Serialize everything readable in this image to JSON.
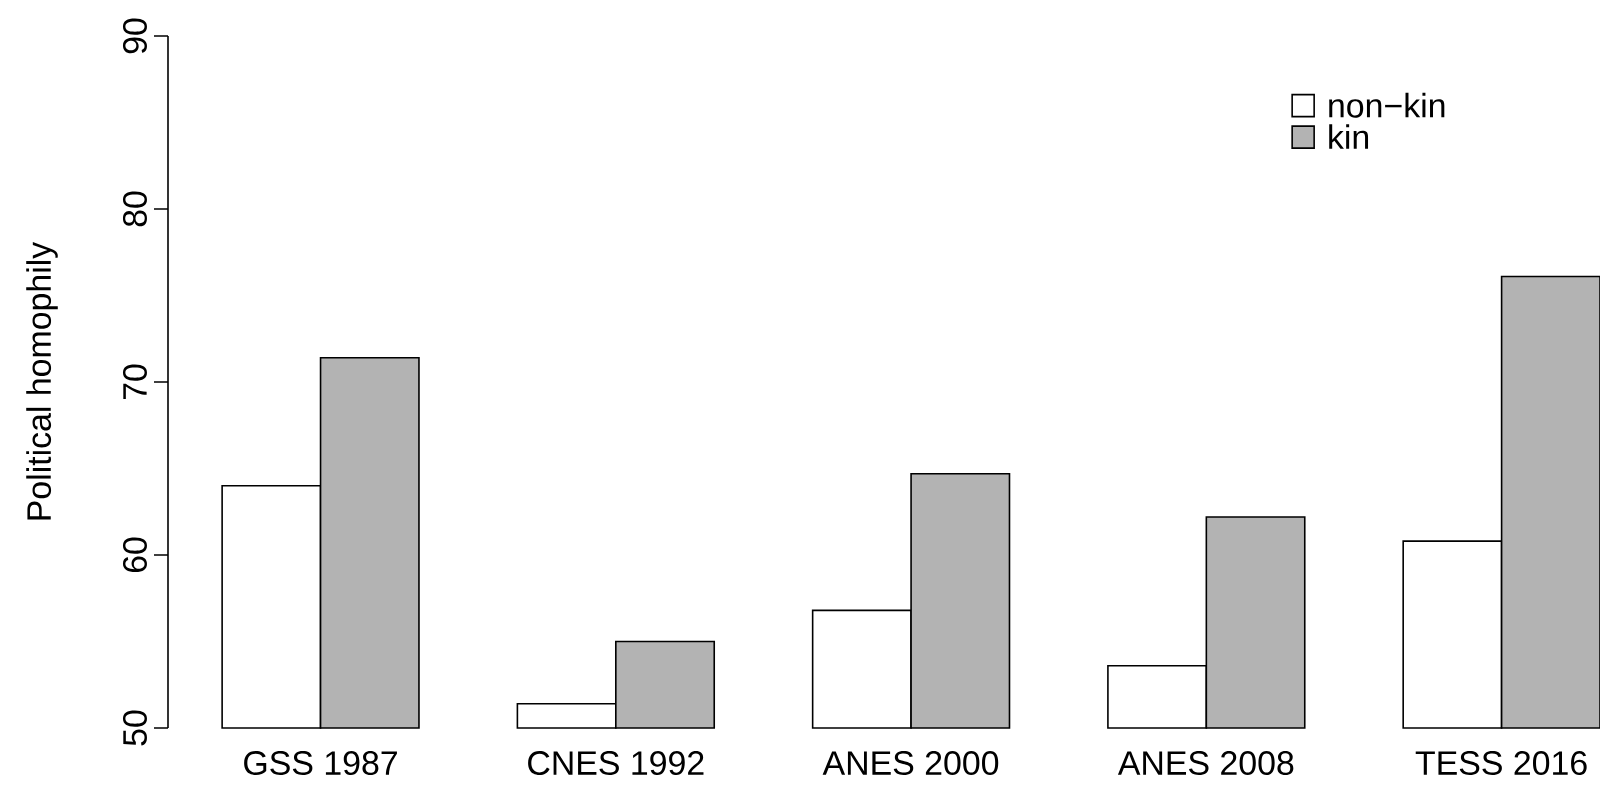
{
  "chart_data": {
    "type": "bar",
    "ylabel": "Political homophily",
    "categories": [
      "GSS 1987",
      "CNES 1992",
      "ANES 2000",
      "ANES 2008",
      "TESS 2016"
    ],
    "series": [
      {
        "name": "non−kin",
        "color": "#ffffff",
        "values": [
          64.0,
          51.4,
          56.8,
          53.6,
          60.8
        ]
      },
      {
        "name": "kin",
        "color": "#b3b3b3",
        "values": [
          71.4,
          55.0,
          64.7,
          62.2,
          76.1
        ]
      }
    ],
    "ylim": [
      50,
      90
    ],
    "yticks": [
      50,
      60,
      70,
      80,
      90
    ],
    "grid": false,
    "legend": "top right"
  }
}
